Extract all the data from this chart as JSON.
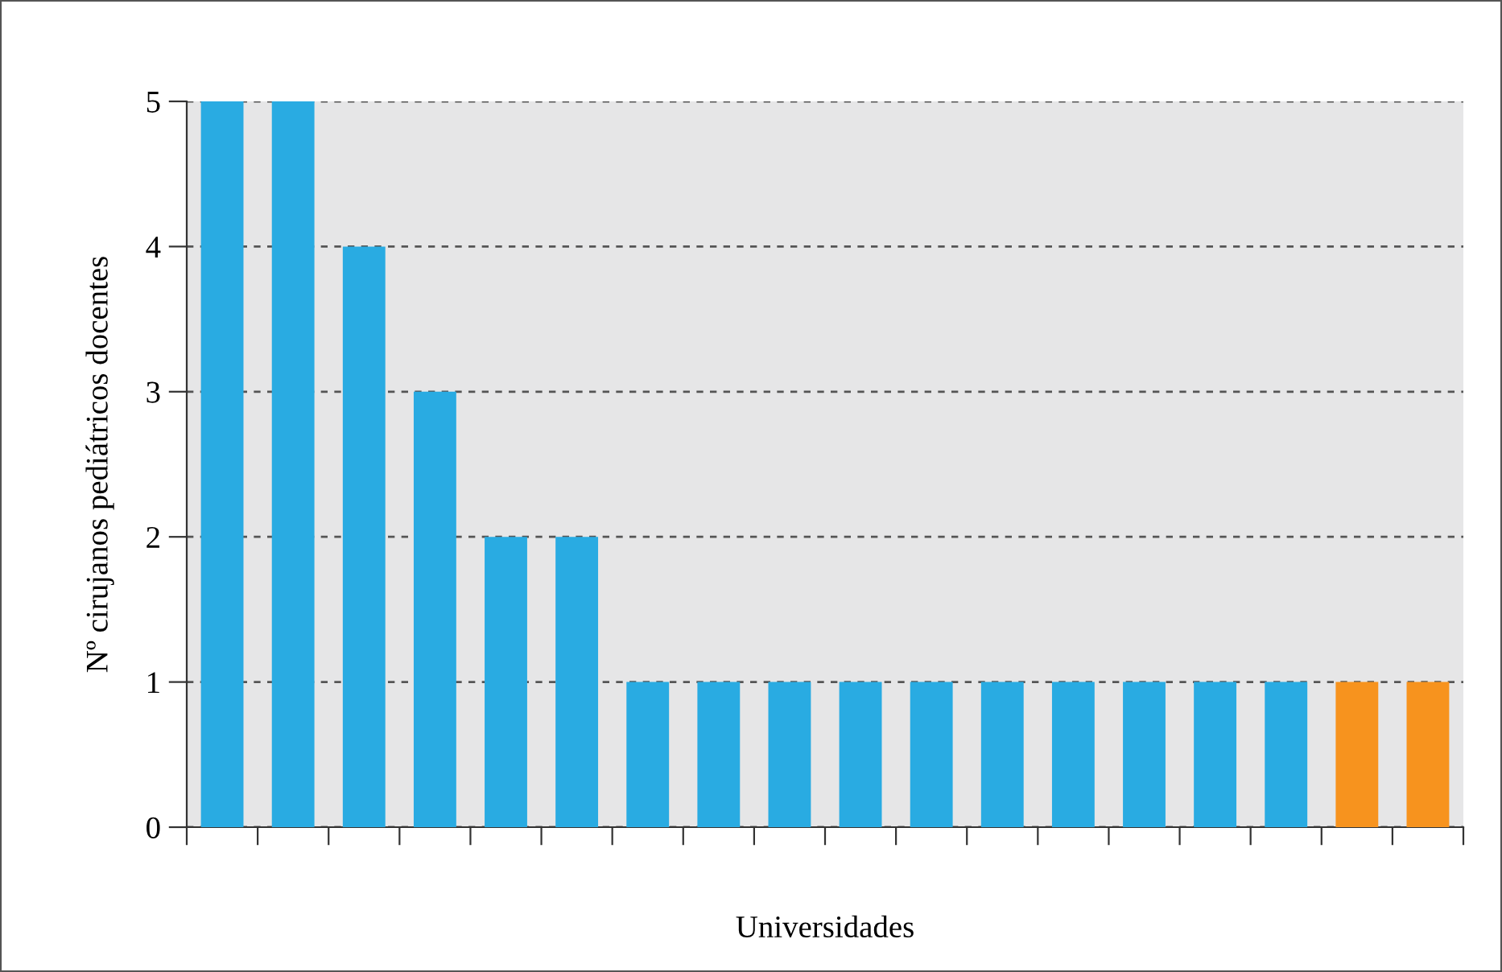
{
  "chart_data": {
    "type": "bar",
    "xlabel": "Universidades",
    "ylabel": "Nº cirujanos pediátricos docentes",
    "categories": [
      null,
      null,
      null,
      null,
      null,
      null,
      null,
      null,
      null,
      null,
      null,
      null,
      null,
      null,
      null,
      null,
      null,
      null
    ],
    "values": [
      5,
      5,
      4,
      3,
      2,
      2,
      1,
      1,
      1,
      1,
      1,
      1,
      1,
      1,
      1,
      1,
      1,
      1
    ],
    "colors": [
      "#29abe2",
      "#29abe2",
      "#29abe2",
      "#29abe2",
      "#29abe2",
      "#29abe2",
      "#29abe2",
      "#29abe2",
      "#29abe2",
      "#29abe2",
      "#29abe2",
      "#29abe2",
      "#29abe2",
      "#29abe2",
      "#29abe2",
      "#29abe2",
      "#f7931e",
      "#f7931e"
    ],
    "ylim": [
      0,
      5
    ],
    "yticks": [
      0,
      1,
      2,
      3,
      4,
      5
    ],
    "grid": "y"
  }
}
